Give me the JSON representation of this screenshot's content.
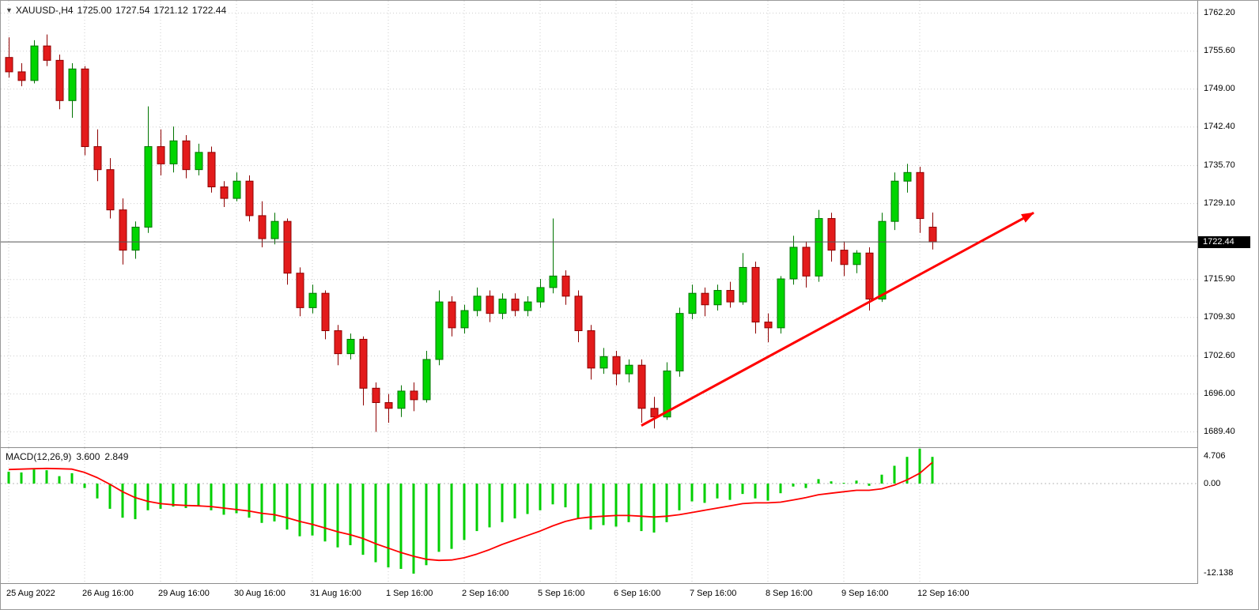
{
  "header": {
    "dropdown_arrow": "▼",
    "symbol_period": "XAUUSD-,H4",
    "open": "1725.00",
    "high": "1727.54",
    "low": "1721.12",
    "close": "1722.44"
  },
  "price_axis": {
    "current_price": "1722.44"
  },
  "macd_panel": {
    "title": "MACD(12,26,9)",
    "macd_value": "3.600",
    "signal_value": "2.849",
    "scale_labels": [
      "4.706",
      "0.00",
      "-12.138"
    ]
  },
  "chart_data": {
    "type": "candlestick",
    "symbol": "XAUUSD-",
    "timeframe": "H4",
    "current_ohlc": {
      "open": 1725.0,
      "high": 1727.54,
      "low": 1721.12,
      "close": 1722.44
    },
    "y_ticks": {
      "labels": [
        "1762.20",
        "1755.60",
        "1749.00",
        "1742.40",
        "1735.70",
        "1729.10",
        "1715.90",
        "1709.30",
        "1702.60",
        "1696.00",
        "1689.40"
      ]
    },
    "x_ticks": {
      "indices": [
        0,
        6,
        12,
        18,
        24,
        30,
        36,
        42,
        48,
        54,
        60,
        66,
        72
      ],
      "labels": [
        "25 Aug 2022",
        "26 Aug 16:00",
        "29 Aug 16:00",
        "30 Aug 16:00",
        "31 Aug 16:00",
        "1 Sep 16:00",
        "2 Sep 16:00",
        "5 Sep 16:00",
        "6 Sep 16:00",
        "7 Sep 16:00",
        "8 Sep 16:00",
        "9 Sep 16:00",
        "12 Sep 16:00"
      ]
    },
    "price_range_visible": [
      1687.0,
      1764.3
    ],
    "macd_range_visible": [
      -13.4,
      4.75
    ],
    "grid": "dotted",
    "candles": [
      [
        1754.5,
        1758.0,
        1751.0,
        1752.0
      ],
      [
        1752.0,
        1753.5,
        1749.5,
        1750.5
      ],
      [
        1750.5,
        1757.5,
        1750.0,
        1756.5
      ],
      [
        1756.5,
        1758.5,
        1753.0,
        1754.0
      ],
      [
        1754.0,
        1755.0,
        1745.5,
        1747.0
      ],
      [
        1747.0,
        1753.5,
        1744.0,
        1752.5
      ],
      [
        1752.5,
        1753.0,
        1737.5,
        1739.0
      ],
      [
        1739.0,
        1742.0,
        1733.0,
        1735.0
      ],
      [
        1735.0,
        1737.0,
        1726.5,
        1728.0
      ],
      [
        1728.0,
        1730.0,
        1718.5,
        1721.0
      ],
      [
        1721.0,
        1726.0,
        1719.5,
        1725.0
      ],
      [
        1725.0,
        1746.0,
        1724.0,
        1739.0
      ],
      [
        1739.0,
        1742.0,
        1734.0,
        1736.0
      ],
      [
        1736.0,
        1742.5,
        1734.5,
        1740.0
      ],
      [
        1740.0,
        1741.0,
        1733.5,
        1735.0
      ],
      [
        1735.0,
        1739.5,
        1734.0,
        1738.0
      ],
      [
        1738.0,
        1739.0,
        1731.0,
        1732.0
      ],
      [
        1732.0,
        1733.0,
        1728.5,
        1730.0
      ],
      [
        1730.0,
        1734.5,
        1729.5,
        1733.0
      ],
      [
        1733.0,
        1734.0,
        1726.0,
        1727.0
      ],
      [
        1727.0,
        1729.5,
        1721.5,
        1723.0
      ],
      [
        1723.0,
        1727.5,
        1722.0,
        1726.0
      ],
      [
        1726.0,
        1726.5,
        1715.0,
        1717.0
      ],
      [
        1717.0,
        1718.0,
        1709.5,
        1711.0
      ],
      [
        1711.0,
        1715.0,
        1710.0,
        1713.5
      ],
      [
        1713.5,
        1714.0,
        1705.5,
        1707.0
      ],
      [
        1707.0,
        1708.0,
        1701.0,
        1703.0
      ],
      [
        1703.0,
        1706.5,
        1702.0,
        1705.5
      ],
      [
        1705.5,
        1706.0,
        1694.0,
        1697.0
      ],
      [
        1697.0,
        1698.0,
        1689.4,
        1694.5
      ],
      [
        1694.5,
        1696.0,
        1691.0,
        1693.5
      ],
      [
        1693.5,
        1697.5,
        1692.0,
        1696.5
      ],
      [
        1696.5,
        1698.0,
        1693.0,
        1695.0
      ],
      [
        1695.0,
        1703.5,
        1694.5,
        1702.0
      ],
      [
        1702.0,
        1714.0,
        1701.0,
        1712.0
      ],
      [
        1712.0,
        1713.0,
        1706.0,
        1707.5
      ],
      [
        1707.5,
        1711.5,
        1706.5,
        1710.5
      ],
      [
        1710.5,
        1714.5,
        1709.5,
        1713.0
      ],
      [
        1713.0,
        1714.0,
        1708.5,
        1710.0
      ],
      [
        1710.0,
        1713.5,
        1709.0,
        1712.5
      ],
      [
        1712.5,
        1713.5,
        1709.5,
        1710.5
      ],
      [
        1710.5,
        1713.0,
        1709.5,
        1712.0
      ],
      [
        1712.0,
        1716.0,
        1711.0,
        1714.5
      ],
      [
        1714.5,
        1726.5,
        1713.5,
        1716.5
      ],
      [
        1716.5,
        1717.5,
        1711.5,
        1713.0
      ],
      [
        1713.0,
        1714.0,
        1705.0,
        1707.0
      ],
      [
        1707.0,
        1708.0,
        1698.5,
        1700.5
      ],
      [
        1700.5,
        1704.0,
        1699.5,
        1702.5
      ],
      [
        1702.5,
        1703.5,
        1697.5,
        1699.5
      ],
      [
        1699.5,
        1702.0,
        1698.0,
        1701.0
      ],
      [
        1701.0,
        1702.0,
        1691.0,
        1693.5
      ],
      [
        1693.5,
        1695.5,
        1690.0,
        1692.0
      ],
      [
        1692.0,
        1701.5,
        1691.5,
        1700.0
      ],
      [
        1700.0,
        1711.0,
        1699.0,
        1710.0
      ],
      [
        1710.0,
        1715.0,
        1709.0,
        1713.5
      ],
      [
        1713.5,
        1714.5,
        1709.5,
        1711.5
      ],
      [
        1711.5,
        1715.0,
        1710.5,
        1714.0
      ],
      [
        1714.0,
        1715.5,
        1711.0,
        1712.0
      ],
      [
        1712.0,
        1720.5,
        1711.5,
        1718.0
      ],
      [
        1718.0,
        1719.0,
        1706.5,
        1708.5
      ],
      [
        1708.5,
        1710.0,
        1705.0,
        1707.5
      ],
      [
        1707.5,
        1716.5,
        1706.5,
        1716.0
      ],
      [
        1716.0,
        1723.5,
        1715.0,
        1721.5
      ],
      [
        1721.5,
        1722.5,
        1714.5,
        1716.5
      ],
      [
        1716.5,
        1728.0,
        1715.5,
        1726.5
      ],
      [
        1726.5,
        1727.5,
        1719.0,
        1721.0
      ],
      [
        1721.0,
        1722.5,
        1716.5,
        1718.5
      ],
      [
        1718.5,
        1721.0,
        1717.0,
        1720.5
      ],
      [
        1720.5,
        1721.5,
        1710.5,
        1712.5
      ],
      [
        1712.5,
        1727.5,
        1712.0,
        1726.0
      ],
      [
        1726.0,
        1734.5,
        1724.5,
        1733.0
      ],
      [
        1733.0,
        1736.0,
        1731.0,
        1734.5
      ],
      [
        1734.5,
        1735.5,
        1724.0,
        1726.5
      ],
      [
        1725.0,
        1727.54,
        1721.12,
        1722.44
      ]
    ],
    "macd": {
      "histogram": [
        1.6,
        1.5,
        1.9,
        1.8,
        1.0,
        1.4,
        -0.6,
        -2.0,
        -3.4,
        -4.6,
        -4.8,
        -3.6,
        -3.4,
        -3.1,
        -3.3,
        -3.0,
        -3.6,
        -4.2,
        -4.0,
        -4.6,
        -5.3,
        -5.1,
        -6.2,
        -7.1,
        -7.0,
        -7.8,
        -8.6,
        -8.3,
        -9.6,
        -10.6,
        -11.3,
        -11.5,
        -12.138,
        -11.0,
        -9.2,
        -8.8,
        -7.6,
        -6.4,
        -5.9,
        -5.2,
        -4.7,
        -4.1,
        -3.6,
        -2.8,
        -3.2,
        -4.8,
        -6.2,
        -5.6,
        -5.8,
        -5.2,
        -6.4,
        -6.6,
        -5.2,
        -3.6,
        -2.4,
        -2.6,
        -2.0,
        -2.2,
        -1.4,
        -2.0,
        -2.3,
        -1.3,
        -0.4,
        -0.6,
        0.6,
        0.3,
        0.1,
        0.4,
        -0.3,
        1.2,
        2.4,
        3.6,
        4.706,
        3.6
      ],
      "signal": [
        1.9,
        1.95,
        2.0,
        2.05,
        2.0,
        1.95,
        1.5,
        0.8,
        -0.1,
        -1.1,
        -1.9,
        -2.4,
        -2.7,
        -2.85,
        -2.95,
        -3.0,
        -3.1,
        -3.3,
        -3.5,
        -3.7,
        -4.0,
        -4.2,
        -4.6,
        -5.1,
        -5.5,
        -6.0,
        -6.5,
        -6.9,
        -7.4,
        -8.1,
        -8.7,
        -9.3,
        -9.8,
        -10.2,
        -10.35,
        -10.3,
        -10.0,
        -9.5,
        -8.9,
        -8.2,
        -7.6,
        -7.0,
        -6.4,
        -5.7,
        -5.1,
        -4.7,
        -4.5,
        -4.4,
        -4.3,
        -4.3,
        -4.4,
        -4.5,
        -4.4,
        -4.2,
        -3.9,
        -3.6,
        -3.3,
        -3.0,
        -2.7,
        -2.6,
        -2.6,
        -2.5,
        -2.2,
        -1.9,
        -1.5,
        -1.3,
        -1.1,
        -0.9,
        -0.9,
        -0.7,
        -0.2,
        0.5,
        1.4,
        2.849
      ]
    },
    "annotations": {
      "trend_arrow": {
        "from_index": 50,
        "from_price": 1690.5,
        "to_index": 81,
        "to_price": 1727.5,
        "color": "#ff0000"
      }
    },
    "colors": {
      "background": "#ffffff",
      "grid": "#cdcdcd",
      "bull_fill": "#00d500",
      "bull_border": "#007400",
      "bear_fill": "#e31b1b",
      "bear_border": "#8f0000",
      "price_line": "#555555",
      "macd_bar": "#00cf00",
      "macd_signal": "#ff0000",
      "zero_line": "#b8b8b8",
      "price_tag_bg": "#000000",
      "price_tag_text": "#ffffff"
    }
  }
}
